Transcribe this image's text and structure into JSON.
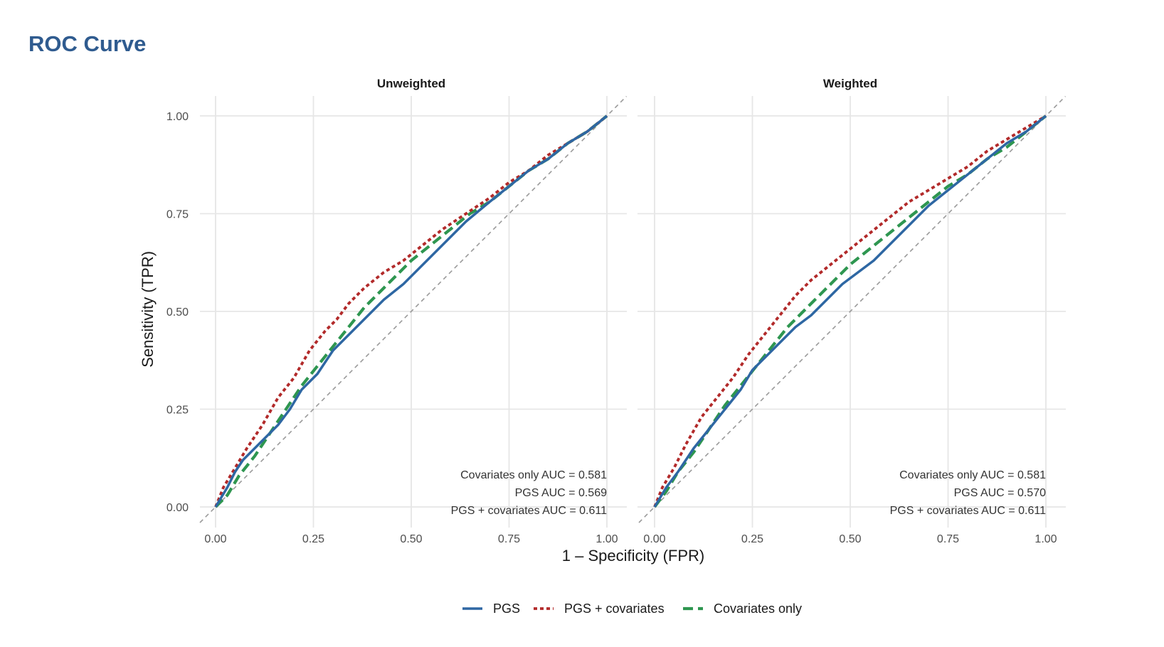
{
  "header": {
    "title": "ROC Curve"
  },
  "chart_data": {
    "type": "line",
    "xlabel": "1 – Specificity (FPR)",
    "ylabel": "Sensitivity (TPR)",
    "xlim": [
      0,
      1
    ],
    "ylim": [
      0,
      1
    ],
    "x_ticks": [
      "0.00",
      "0.25",
      "0.50",
      "0.75",
      "1.00"
    ],
    "y_ticks": [
      "0.00",
      "0.25",
      "0.50",
      "0.75",
      "1.00"
    ],
    "grid": true,
    "reference_line": "diagonal y = x (chance)",
    "legend": {
      "position": "bottom",
      "entries": [
        {
          "name": "PGS",
          "color": "#2e67a3",
          "style": "solid"
        },
        {
          "name": "PGS + covariates",
          "color": "#b22a2a",
          "style": "dotted"
        },
        {
          "name": "Covariates only",
          "color": "#2e9650",
          "style": "dashed"
        }
      ]
    },
    "panels": [
      {
        "title": "Unweighted",
        "annotations": [
          "Covariates only  AUC = 0.581",
          "PGS  AUC = 0.569",
          "PGS + covariates  AUC = 0.611"
        ],
        "series": [
          {
            "name": "PGS",
            "x": [
              0,
              0.03,
              0.05,
              0.07,
              0.1,
              0.13,
              0.16,
              0.19,
              0.22,
              0.26,
              0.3,
              0.35,
              0.4,
              0.43,
              0.48,
              0.53,
              0.58,
              0.64,
              0.7,
              0.75,
              0.8,
              0.85,
              0.9,
              0.95,
              1.0
            ],
            "y": [
              0,
              0.05,
              0.09,
              0.12,
              0.15,
              0.18,
              0.21,
              0.25,
              0.3,
              0.34,
              0.4,
              0.45,
              0.5,
              0.53,
              0.57,
              0.62,
              0.67,
              0.73,
              0.78,
              0.82,
              0.86,
              0.89,
              0.93,
              0.96,
              1.0
            ]
          },
          {
            "name": "PGS + covariates",
            "x": [
              0,
              0.02,
              0.05,
              0.08,
              0.12,
              0.16,
              0.2,
              0.24,
              0.28,
              0.31,
              0.34,
              0.38,
              0.43,
              0.48,
              0.53,
              0.58,
              0.64,
              0.7,
              0.75,
              0.8,
              0.85,
              0.9,
              0.95,
              1.0
            ],
            "y": [
              0,
              0.05,
              0.1,
              0.15,
              0.21,
              0.28,
              0.33,
              0.4,
              0.45,
              0.48,
              0.52,
              0.56,
              0.6,
              0.63,
              0.67,
              0.71,
              0.75,
              0.79,
              0.83,
              0.86,
              0.9,
              0.93,
              0.96,
              1.0
            ]
          },
          {
            "name": "Covariates only",
            "x": [
              0,
              0.03,
              0.06,
              0.1,
              0.14,
              0.18,
              0.22,
              0.26,
              0.3,
              0.34,
              0.38,
              0.42,
              0.46,
              0.5,
              0.55,
              0.6,
              0.65,
              0.7,
              0.75,
              0.8,
              0.85,
              0.9,
              0.95,
              1.0
            ],
            "y": [
              0,
              0.03,
              0.08,
              0.13,
              0.19,
              0.25,
              0.31,
              0.36,
              0.41,
              0.46,
              0.51,
              0.55,
              0.59,
              0.63,
              0.67,
              0.71,
              0.75,
              0.78,
              0.82,
              0.86,
              0.89,
              0.93,
              0.96,
              1.0
            ]
          }
        ]
      },
      {
        "title": "Weighted",
        "annotations": [
          "Covariates only  AUC = 0.581",
          "PGS  AUC = 0.570",
          "PGS + covariates  AUC = 0.611"
        ],
        "series": [
          {
            "name": "PGS",
            "x": [
              0,
              0.03,
              0.06,
              0.1,
              0.14,
              0.18,
              0.22,
              0.25,
              0.28,
              0.32,
              0.36,
              0.4,
              0.44,
              0.48,
              0.52,
              0.56,
              0.6,
              0.65,
              0.7,
              0.75,
              0.8,
              0.85,
              0.9,
              0.95,
              1.0
            ],
            "y": [
              0,
              0.05,
              0.09,
              0.15,
              0.2,
              0.25,
              0.3,
              0.35,
              0.38,
              0.42,
              0.46,
              0.49,
              0.53,
              0.57,
              0.6,
              0.63,
              0.67,
              0.72,
              0.77,
              0.81,
              0.85,
              0.89,
              0.93,
              0.96,
              1.0
            ]
          },
          {
            "name": "PGS + covariates",
            "x": [
              0,
              0.02,
              0.05,
              0.08,
              0.12,
              0.16,
              0.2,
              0.24,
              0.28,
              0.32,
              0.36,
              0.4,
              0.45,
              0.5,
              0.55,
              0.6,
              0.65,
              0.7,
              0.75,
              0.8,
              0.85,
              0.9,
              0.95,
              1.0
            ],
            "y": [
              0,
              0.05,
              0.1,
              0.16,
              0.23,
              0.28,
              0.33,
              0.39,
              0.44,
              0.49,
              0.54,
              0.58,
              0.62,
              0.66,
              0.7,
              0.74,
              0.78,
              0.81,
              0.84,
              0.87,
              0.91,
              0.94,
              0.97,
              1.0
            ]
          },
          {
            "name": "Covariates only",
            "x": [
              0,
              0.03,
              0.06,
              0.1,
              0.14,
              0.18,
              0.22,
              0.26,
              0.3,
              0.34,
              0.38,
              0.42,
              0.46,
              0.5,
              0.55,
              0.6,
              0.65,
              0.7,
              0.75,
              0.8,
              0.85,
              0.9,
              0.95,
              1.0
            ],
            "y": [
              0,
              0.04,
              0.09,
              0.14,
              0.2,
              0.26,
              0.31,
              0.36,
              0.41,
              0.46,
              0.5,
              0.54,
              0.58,
              0.62,
              0.66,
              0.7,
              0.74,
              0.78,
              0.82,
              0.85,
              0.89,
              0.92,
              0.96,
              1.0
            ]
          }
        ]
      }
    ]
  }
}
